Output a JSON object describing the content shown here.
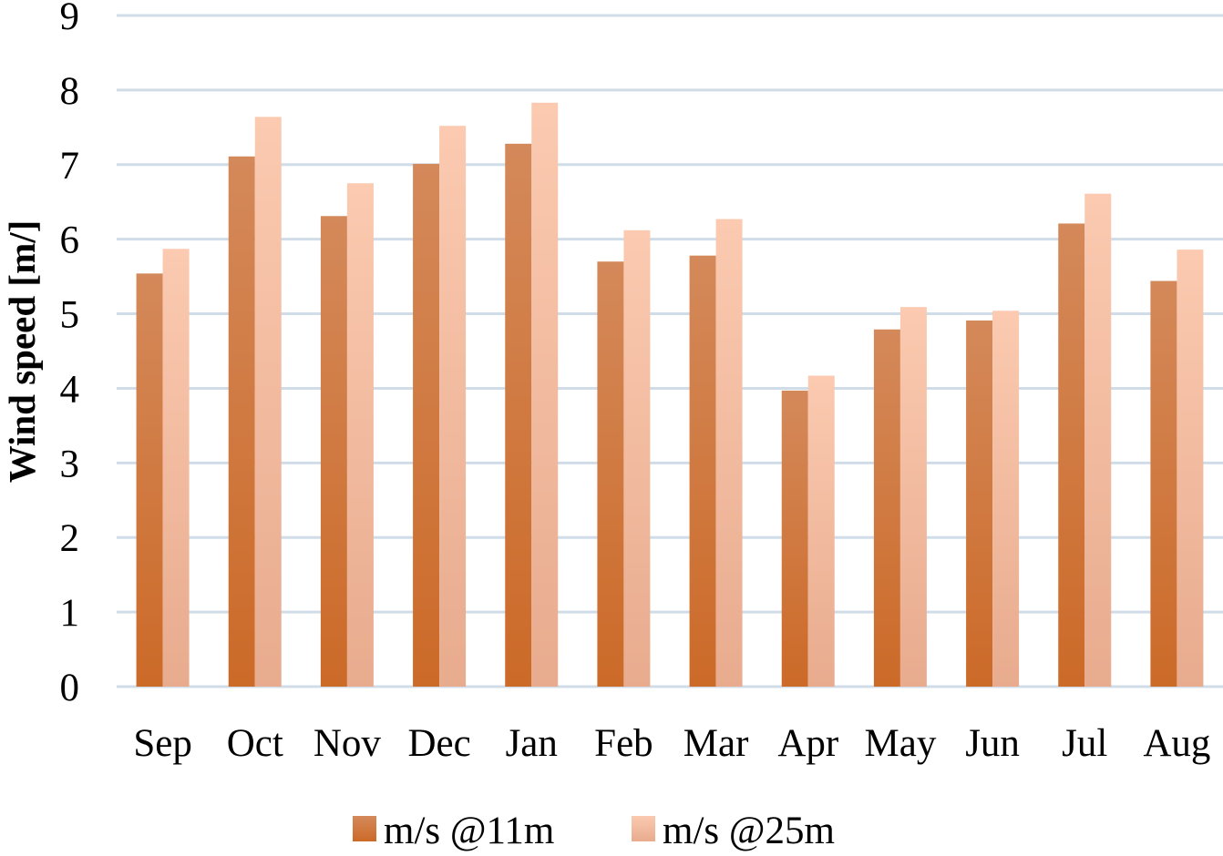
{
  "chart_data": {
    "type": "bar",
    "categories": [
      "Sep",
      "Oct",
      "Nov",
      "Dec",
      "Jan",
      "Feb",
      "Mar",
      "Apr",
      "May",
      "Jun",
      "Jul",
      "Aug"
    ],
    "series": [
      {
        "name": "m/s @11m",
        "values": [
          5.54,
          7.11,
          6.31,
          7.01,
          7.28,
          5.7,
          5.78,
          3.97,
          4.79,
          4.91,
          6.21,
          5.44
        ],
        "color_top": "#d4895a",
        "color_bottom": "#cc6a28"
      },
      {
        "name": "m/s @25m",
        "values": [
          5.87,
          7.64,
          6.75,
          7.52,
          7.83,
          6.12,
          6.27,
          4.17,
          5.09,
          5.04,
          6.61,
          5.86
        ],
        "color_top": "#fbcab0",
        "color_bottom": "#e8ab8e"
      }
    ],
    "ylabel": "Wind speed [m/]",
    "xlabel": "",
    "ylim": [
      0,
      9
    ],
    "yticks": [
      0,
      1,
      2,
      3,
      4,
      5,
      6,
      7,
      8,
      9
    ],
    "grid": true,
    "legend_position": "bottom"
  }
}
